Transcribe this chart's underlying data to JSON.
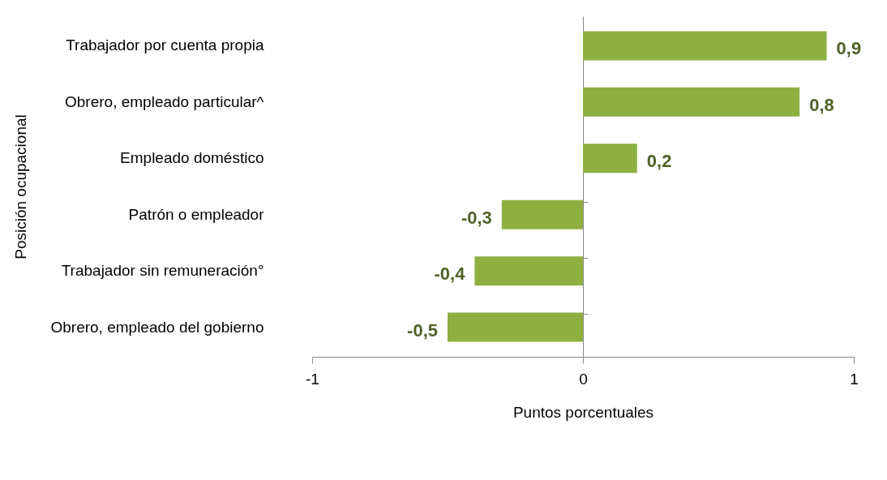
{
  "chart_data": {
    "type": "bar",
    "orientation": "horizontal",
    "categories": [
      "Trabajador por cuenta propia",
      "Obrero, empleado particular^",
      "Empleado doméstico",
      "Patrón o empleador",
      "Trabajador sin remuneración°",
      "Obrero, empleado del gobierno"
    ],
    "values": [
      0.9,
      0.8,
      0.2,
      -0.3,
      -0.4,
      -0.5
    ],
    "value_labels": [
      "0,9",
      "0,8",
      "0,2",
      "-0,3",
      "-0,4",
      "-0,5"
    ],
    "color": "#8db040",
    "xlim": [
      -1,
      1
    ],
    "xticks": [
      {
        "value": -1,
        "label": "-1"
      },
      {
        "value": 0,
        "label": "0"
      },
      {
        "value": 1,
        "label": "1"
      }
    ],
    "xlabel": "Puntos porcentuales",
    "ylabel": "Posición ocupacional"
  }
}
